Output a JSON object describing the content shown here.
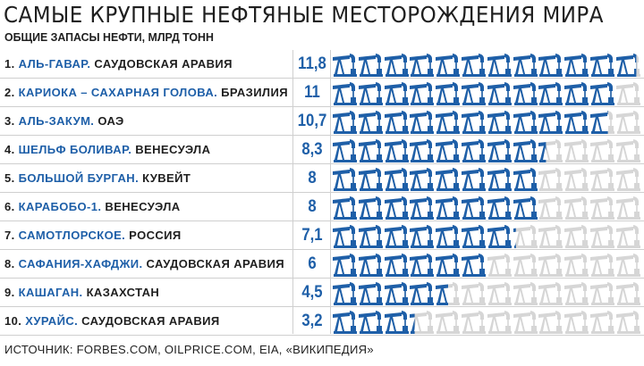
{
  "title": "САМЫЕ КРУПНЫЕ НЕФТЯНЫЕ МЕСТОРОЖДЕНИЯ МИРА",
  "subtitle": "ОБЩИЕ ЗАПАСЫ НЕФТИ, МЛРД ТОНН",
  "source": "ИСТОЧНИК: FORBES.COM, OILPRICE.COM, EIA, «ВИКИПЕДИЯ»",
  "colors": {
    "accent": "#1e5fa8",
    "empty": "#d6d6d6",
    "separator": "#cfcfcf"
  },
  "icon": "oil-pump-icon",
  "chart_data": {
    "type": "bar",
    "categories": [
      "АЛЬ-ГАВАР",
      "КАРИОКА – САХАРНАЯ ГОЛОВА",
      "АЛЬ-ЗАКУМ",
      "ШЕЛЬФ БОЛИВАР",
      "БОЛЬШОЙ БУРГАН",
      "КАРАБОБО-1",
      "САМОТЛОРСКОЕ",
      "САФАНИЯ-ХАФДЖИ",
      "КАШАГАН",
      "ХУРАЙС"
    ],
    "values": [
      11.8,
      11,
      10.7,
      8.3,
      8,
      8,
      7.1,
      6,
      4.5,
      3.2
    ],
    "ylim": [
      0,
      12
    ],
    "rows": [
      {
        "rank": "1.",
        "field": "АЛЬ-ГАВАР.",
        "country": "САУДОВСКАЯ АРАВИЯ",
        "label": "11,8",
        "value": 11.8
      },
      {
        "rank": "2.",
        "field": "КАРИОКА – САХАРНАЯ ГОЛОВА.",
        "country": "БРАЗИЛИЯ",
        "label": "11",
        "value": 11
      },
      {
        "rank": "3.",
        "field": "АЛЬ-ЗАКУМ.",
        "country": "ОАЭ",
        "label": "10,7",
        "value": 10.7
      },
      {
        "rank": "4.",
        "field": "ШЕЛЬФ БОЛИВАР.",
        "country": "ВЕНЕСУЭЛА",
        "label": "8,3",
        "value": 8.3
      },
      {
        "rank": "5.",
        "field": "БОЛЬШОЙ БУРГАН.",
        "country": "КУВЕЙТ",
        "label": "8",
        "value": 8
      },
      {
        "rank": "6.",
        "field": "КАРАБОБО-1.",
        "country": "ВЕНЕСУЭЛА",
        "label": "8",
        "value": 8
      },
      {
        "rank": "7.",
        "field": "САМОТЛОРСКОЕ.",
        "country": "РОССИЯ",
        "label": "7,1",
        "value": 7.1
      },
      {
        "rank": "8.",
        "field": "САФАНИЯ-ХАФДЖИ.",
        "country": "САУДОВСКАЯ АРАВИЯ",
        "label": "6",
        "value": 6
      },
      {
        "rank": "9.",
        "field": "КАШАГАН.",
        "country": "КАЗАХСТАН",
        "label": "4,5",
        "value": 4.5
      },
      {
        "rank": "10.",
        "field": "ХУРАЙС.",
        "country": "САУДОВСКАЯ АРАВИЯ",
        "label": "3,2",
        "value": 3.2
      }
    ]
  }
}
